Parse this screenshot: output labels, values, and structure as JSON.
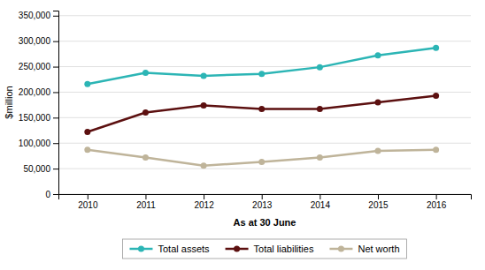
{
  "chart_data": {
    "type": "line",
    "x": [
      2010,
      2011,
      2012,
      2013,
      2014,
      2015,
      2016
    ],
    "series": [
      {
        "name": "Total assets",
        "color": "#2CB5B5",
        "values": [
          216000,
          238000,
          232000,
          236000,
          249000,
          272000,
          287000
        ],
        "marker": "circle",
        "line_style": "solid"
      },
      {
        "name": "Total liabilities",
        "color": "#5C1010",
        "values": [
          122000,
          160000,
          174000,
          167000,
          167000,
          180000,
          193000
        ],
        "marker": "circle",
        "line_style": "solid"
      },
      {
        "name": "Net worth",
        "color": "#BFB49A",
        "values": [
          87000,
          72000,
          56000,
          63000,
          72000,
          85000,
          87000
        ],
        "marker": "circle",
        "line_style": "solid"
      }
    ],
    "xlabel": "As at 30 June",
    "ylabel": "$million",
    "xlim": [
      2009.5,
      2016.6
    ],
    "xticks": [
      2010,
      2011,
      2012,
      2013,
      2014,
      2015,
      2016
    ],
    "ylim": [
      0,
      360000
    ],
    "yticks": [
      0,
      {
        "value": 50000,
        "label": "50,000"
      },
      {
        "value": 100000,
        "label": "100,000"
      },
      {
        "value": 150000,
        "label": "150,000"
      },
      {
        "value": 200000,
        "label": "200,000"
      },
      {
        "value": 250000,
        "label": "250,000"
      },
      {
        "value": 300000,
        "label": "300,000"
      },
      {
        "value": 350000,
        "label": "350,000"
      }
    ],
    "grid": true,
    "legend": "bottom"
  }
}
